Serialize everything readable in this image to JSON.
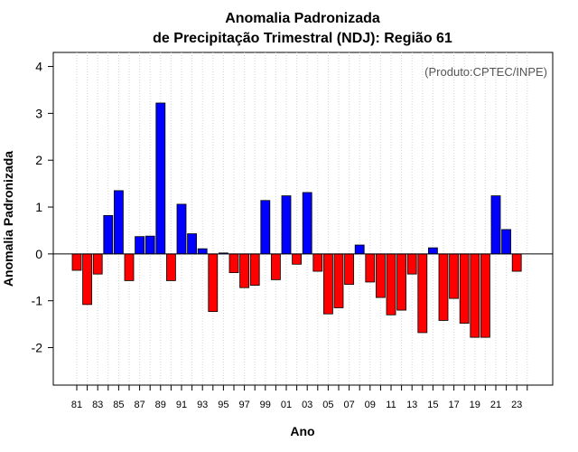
{
  "chart_data": {
    "type": "bar",
    "title": "Anomalia Padronizada",
    "subtitle": "de Precipitação Trimestral (NDJ): Região 61",
    "xlabel": "Ano",
    "ylabel": "Anomalia Padronizada",
    "credit": "(Produto:CPTEC/INPE)",
    "ylim": [
      -2.8,
      4.3
    ],
    "yticks": [
      -2,
      -1,
      0,
      1,
      2,
      3,
      4
    ],
    "xtick_labels": [
      "81",
      "83",
      "85",
      "87",
      "89",
      "91",
      "93",
      "95",
      "97",
      "99",
      "01",
      "03",
      "05",
      "07",
      "09",
      "11",
      "13",
      "15",
      "17",
      "19",
      "21",
      "23"
    ],
    "categories": [
      "1981",
      "1982",
      "1983",
      "1984",
      "1985",
      "1986",
      "1987",
      "1988",
      "1989",
      "1990",
      "1991",
      "1992",
      "1993",
      "1994",
      "1995",
      "1996",
      "1997",
      "1998",
      "1999",
      "2000",
      "2001",
      "2002",
      "2003",
      "2004",
      "2005",
      "2006",
      "2007",
      "2008",
      "2009",
      "2010",
      "2011",
      "2012",
      "2013",
      "2014",
      "2015",
      "2016",
      "2017",
      "2018",
      "2019",
      "2020",
      "2021",
      "2022",
      "2023"
    ],
    "values": [
      -0.35,
      -1.08,
      -0.43,
      0.82,
      1.35,
      -0.57,
      0.37,
      0.38,
      3.22,
      -0.57,
      1.06,
      0.43,
      0.11,
      -1.23,
      0.02,
      -0.4,
      -0.72,
      -0.67,
      1.14,
      -0.55,
      1.24,
      -0.22,
      1.31,
      -0.37,
      -1.28,
      -1.15,
      -0.65,
      0.19,
      -0.6,
      -0.93,
      -1.3,
      -1.2,
      -0.43,
      -1.68,
      0.13,
      -1.42,
      -0.95,
      -1.48,
      -1.78,
      -1.78,
      1.24,
      0.52,
      -0.37
    ],
    "colors": {
      "positive": "#0000ff",
      "negative": "#ff0000",
      "grid": "#d3d3d3",
      "axis": "#000000"
    },
    "grid": true
  }
}
